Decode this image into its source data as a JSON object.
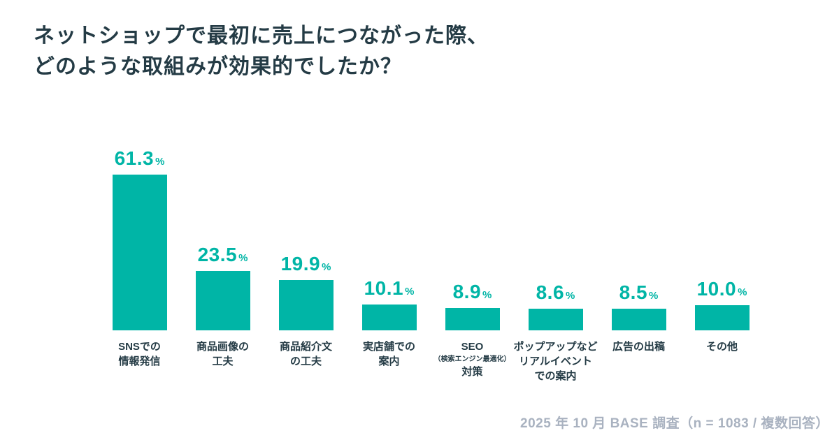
{
  "title": {
    "line1": "ネットショップで最初に売上につながった際、",
    "line2": "どのような取組みが効果的でしたか？"
  },
  "footer": {
    "text": "2025 年 10 月 BASE 調査（n = 1083 / 複数回答）"
  },
  "colors": {
    "bar": "#00b5a6",
    "value_label": "#00b5a6",
    "title": "#243b45",
    "category": "#243b45",
    "footer": "#a9b2c0",
    "background": "#ffffff"
  },
  "chart_data": {
    "type": "bar",
    "title": "ネットショップで最初に売上につながった際、どのような取組みが効果的でしたか？",
    "source": "2025 年 10 月 BASE 調査（n = 1083 / 複数回答）",
    "unit": "%",
    "ylim": [
      0,
      65
    ],
    "grid": false,
    "legend": false,
    "value_labels_shown": true,
    "categories": [
      "SNSでの情報発信",
      "商品画像の工夫",
      "商品紹介文の工夫",
      "実店舗での案内",
      "SEO（検索エンジン最適化）対策",
      "ポップアップなどリアルイベントでの案内",
      "広告の出稿",
      "その他"
    ],
    "values": [
      61.3,
      23.5,
      19.9,
      10.1,
      8.9,
      8.6,
      8.5,
      10.0
    ],
    "bars": [
      {
        "value": 61.3,
        "label_lines": [
          {
            "text": "SNSでの",
            "small": false
          },
          {
            "text": "情報発信",
            "small": false
          }
        ]
      },
      {
        "value": 23.5,
        "label_lines": [
          {
            "text": "商品画像の",
            "small": false
          },
          {
            "text": "工夫",
            "small": false
          }
        ]
      },
      {
        "value": 19.9,
        "label_lines": [
          {
            "text": "商品紹介文",
            "small": false
          },
          {
            "text": "の工夫",
            "small": false
          }
        ]
      },
      {
        "value": 10.1,
        "label_lines": [
          {
            "text": "実店舗での",
            "small": false
          },
          {
            "text": "案内",
            "small": false
          }
        ]
      },
      {
        "value": 8.9,
        "label_lines": [
          {
            "text": "SEO",
            "small": false
          },
          {
            "text": "（検索エンジン最適化）",
            "small": true
          },
          {
            "text": "対策",
            "small": false
          }
        ]
      },
      {
        "value": 8.6,
        "label_lines": [
          {
            "text": "ポップアップなど",
            "small": false
          },
          {
            "text": "リアルイベント",
            "small": false
          },
          {
            "text": "での案内",
            "small": false
          }
        ]
      },
      {
        "value": 8.5,
        "label_lines": [
          {
            "text": "広告の出稿",
            "small": false
          }
        ]
      },
      {
        "value": 10.0,
        "label_lines": [
          {
            "text": "その他",
            "small": false
          }
        ]
      }
    ]
  }
}
